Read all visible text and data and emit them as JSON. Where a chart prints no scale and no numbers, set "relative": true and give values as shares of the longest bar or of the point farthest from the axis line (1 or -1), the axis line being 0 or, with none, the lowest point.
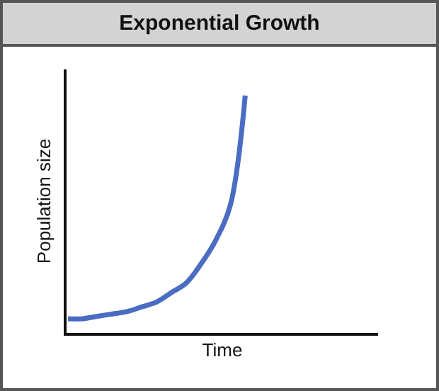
{
  "chart_data": {
    "type": "line",
    "title": "Exponential Growth",
    "xlabel": "Time",
    "ylabel": "Population size",
    "relative": true,
    "categories": [
      null,
      null,
      null,
      null,
      null,
      null,
      null,
      null,
      null,
      null,
      null,
      null,
      null,
      null,
      null,
      null,
      null,
      null,
      null,
      null,
      null,
      null
    ],
    "values": [
      0.06,
      0.06,
      0.07,
      0.08,
      0.09,
      0.11,
      0.13,
      0.17,
      0.21,
      0.29,
      0.39,
      0.54,
      1.0,
      null,
      null,
      null,
      null,
      null,
      null,
      null,
      null,
      null
    ],
    "color": "#4a6cc2"
  }
}
